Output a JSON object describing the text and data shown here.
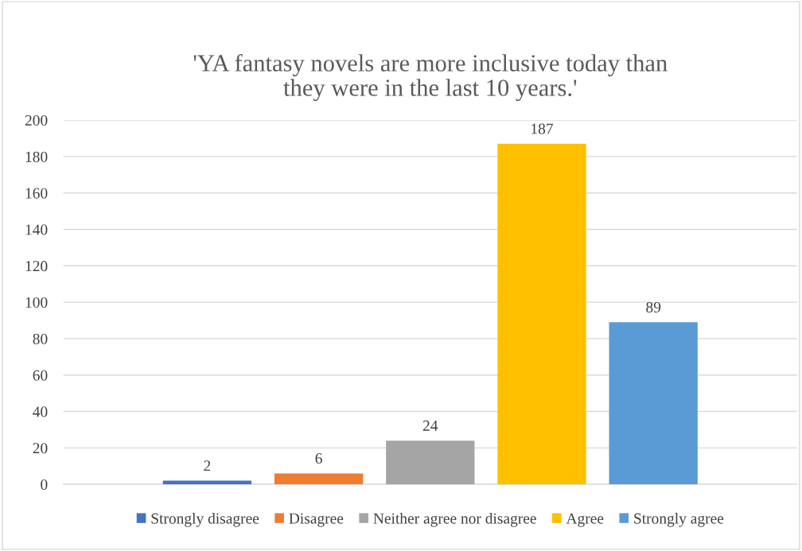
{
  "chart_data": {
    "type": "bar",
    "title": "'YA fantasy novels are more inclusive today than\nthey were in the last 10 years.'",
    "categories": [
      null
    ],
    "series": [
      {
        "name": "Strongly disagree",
        "color": "#4472c4",
        "values": [
          2
        ]
      },
      {
        "name": "Disagree",
        "color": "#ed7d31",
        "values": [
          6
        ]
      },
      {
        "name": "Neither agree nor disagree",
        "color": "#a5a5a5",
        "values": [
          24
        ]
      },
      {
        "name": "Agree",
        "color": "#ffc000",
        "values": [
          187
        ]
      },
      {
        "name": "Strongly agree",
        "color": "#5b9bd5",
        "values": [
          89
        ]
      }
    ],
    "ylim": [
      0,
      200
    ],
    "yticks": [
      0,
      20,
      40,
      60,
      80,
      100,
      120,
      140,
      160,
      180,
      200
    ],
    "grid": "y",
    "legend": "bottom",
    "data_labels": true
  }
}
